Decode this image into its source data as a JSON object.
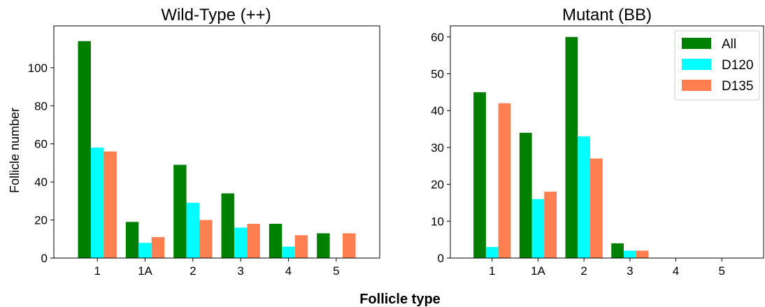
{
  "figure": {
    "xlabel": "Follicle type"
  },
  "chart_data": [
    {
      "type": "bar",
      "title": "Wild-Type (++)",
      "xlabel": "",
      "ylabel": "Follicle number",
      "categories": [
        "1",
        "1A",
        "2",
        "3",
        "4",
        "5"
      ],
      "ylim": [
        0,
        122
      ],
      "yticks": [
        0,
        20,
        40,
        60,
        80,
        100
      ],
      "series": [
        {
          "name": "All",
          "color": "#008000",
          "values": [
            114,
            19,
            49,
            34,
            18,
            13
          ]
        },
        {
          "name": "D120",
          "color": "#00FFFF",
          "values": [
            58,
            8,
            29,
            16,
            6,
            0
          ]
        },
        {
          "name": "D135",
          "color": "#FF7F50",
          "values": [
            56,
            11,
            20,
            18,
            12,
            13
          ]
        }
      ],
      "legend": null,
      "grid": false
    },
    {
      "type": "bar",
      "title": "Mutant (BB)",
      "xlabel": "",
      "ylabel": "",
      "categories": [
        "1",
        "1A",
        "2",
        "3",
        "4",
        "5"
      ],
      "ylim": [
        0,
        63
      ],
      "yticks": [
        0,
        10,
        20,
        30,
        40,
        50,
        60
      ],
      "series": [
        {
          "name": "All",
          "color": "#008000",
          "values": [
            45,
            34,
            60,
            4,
            0,
            0
          ]
        },
        {
          "name": "D120",
          "color": "#00FFFF",
          "values": [
            3,
            16,
            33,
            2,
            0,
            0
          ]
        },
        {
          "name": "D135",
          "color": "#FF7F50",
          "values": [
            42,
            18,
            27,
            2,
            0,
            0
          ]
        }
      ],
      "legend": "top-right",
      "grid": false
    }
  ]
}
